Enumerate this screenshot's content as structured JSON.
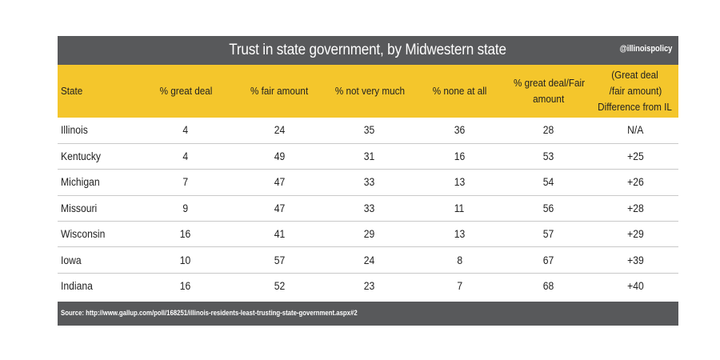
{
  "header": {
    "title": "Trust in state government, by Midwestern state",
    "handle": "@illinoispolicy"
  },
  "chart_data": {
    "type": "table",
    "columns": [
      "State",
      "% great deal",
      "% fair amount",
      "% not very much",
      "% none at all",
      "% great deal/Fair amount",
      "(Great deal /fair amount) Difference from IL"
    ],
    "column_lines": {
      "great_fair": [
        "% great deal/Fair",
        "amount"
      ],
      "difference": [
        "(Great deal",
        "/fair amount)",
        "Difference from IL"
      ]
    },
    "rows": [
      [
        "Illinois",
        "4",
        "24",
        "35",
        "36",
        "28",
        "N/A"
      ],
      [
        "Kentucky",
        "4",
        "49",
        "31",
        "16",
        "53",
        "+25"
      ],
      [
        "Michigan",
        "7",
        "47",
        "33",
        "13",
        "54",
        "+26"
      ],
      [
        "Missouri",
        "9",
        "47",
        "33",
        "11",
        "56",
        "+28"
      ],
      [
        "Wisconsin",
        "16",
        "41",
        "29",
        "13",
        "57",
        "+29"
      ],
      [
        "Iowa",
        "10",
        "57",
        "24",
        "8",
        "67",
        "+39"
      ],
      [
        "Indiana",
        "16",
        "52",
        "23",
        "7",
        "68",
        "+40"
      ]
    ]
  },
  "footer": {
    "source": "Source: http://www.gallup.com/poll/168251/illinois-residents-least-trusting-state-government.aspx#2"
  },
  "colors": {
    "title_bar": "#58595b",
    "header_row": "#f4c62c",
    "row_divider": "#c9c9c9"
  }
}
